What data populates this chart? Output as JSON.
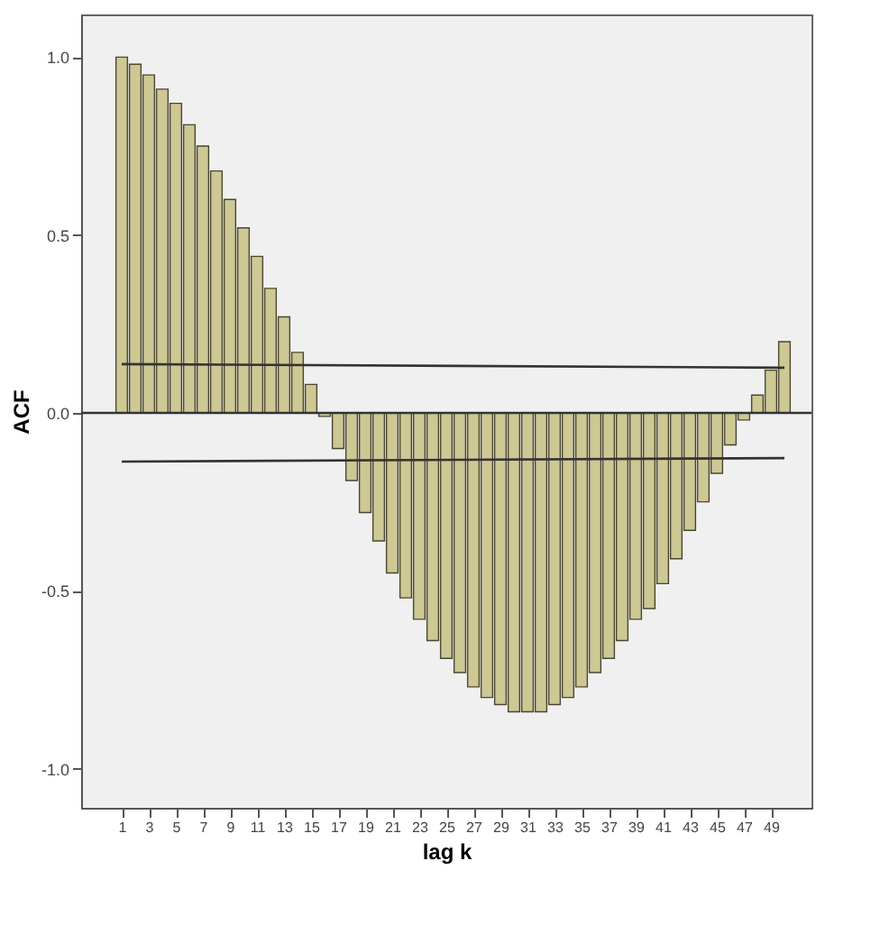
{
  "chart_data": {
    "type": "bar",
    "xlabel": "lag k",
    "ylabel": "ACF",
    "xlim": [
      -2,
      52
    ],
    "xticks": [
      1,
      3,
      5,
      7,
      9,
      11,
      13,
      15,
      17,
      19,
      21,
      23,
      25,
      27,
      29,
      31,
      33,
      35,
      37,
      39,
      41,
      43,
      45,
      47,
      49
    ],
    "ylim": [
      -1.11,
      1.12
    ],
    "yticks": [
      {
        "value": -1,
        "label": "-1.0"
      },
      {
        "value": -0.5,
        "label": "-0.5"
      },
      {
        "value": 0,
        "label": "0.0"
      },
      {
        "value": 0.5,
        "label": "0.5"
      },
      {
        "value": 1,
        "label": "1.0"
      }
    ],
    "grid": false,
    "series": [
      {
        "color": "#cdc894",
        "x": [
          1,
          2,
          3,
          4,
          5,
          6,
          7,
          8,
          9,
          10,
          11,
          12,
          13,
          14,
          15,
          16,
          17,
          18,
          19,
          20,
          21,
          22,
          23,
          24,
          25,
          26,
          27,
          28,
          29,
          30,
          31,
          32,
          33,
          34,
          35,
          36,
          37,
          38,
          39,
          40,
          41,
          42,
          43,
          44,
          45,
          46,
          47,
          48,
          49,
          50
        ],
        "values": [
          1.0,
          0.98,
          0.95,
          0.91,
          0.87,
          0.81,
          0.75,
          0.68,
          0.6,
          0.52,
          0.44,
          0.35,
          0.27,
          0.17,
          0.08,
          -0.01,
          -0.1,
          -0.19,
          -0.28,
          -0.36,
          -0.45,
          -0.52,
          -0.58,
          -0.64,
          -0.69,
          -0.73,
          -0.77,
          -0.8,
          -0.82,
          -0.84,
          -0.84,
          -0.84,
          -0.82,
          -0.8,
          -0.77,
          -0.73,
          -0.69,
          -0.64,
          -0.58,
          -0.55,
          -0.48,
          -0.41,
          -0.33,
          -0.25,
          -0.17,
          -0.09,
          -0.02,
          0.05,
          0.12,
          0.2
        ]
      },
      {
        "type": "line",
        "color": "#333333",
        "x": [
          1,
          50
        ],
        "values": [
          0.137,
          0.127
        ]
      },
      {
        "type": "line",
        "color": "#333333",
        "x": [
          1,
          50
        ],
        "values": [
          -0.137,
          -0.127
        ]
      }
    ],
    "ref_lines": [
      {
        "axis": "y",
        "value": 0,
        "color": "#333333"
      }
    ]
  }
}
